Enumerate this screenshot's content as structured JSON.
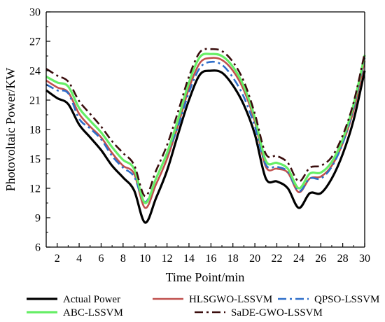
{
  "chart_data": {
    "type": "line",
    "xlabel": "Time Point/min",
    "ylabel": "Photovoltaic Power/KW",
    "xlim": [
      1,
      30
    ],
    "ylim": [
      6,
      30
    ],
    "x_ticks": [
      2,
      4,
      6,
      8,
      10,
      12,
      14,
      16,
      18,
      20,
      22,
      24,
      26,
      28,
      30
    ],
    "y_ticks": [
      6,
      9,
      12,
      15,
      18,
      21,
      24,
      27,
      30
    ],
    "grid": false,
    "legend_position": "bottom",
    "x": [
      1,
      2,
      3,
      4,
      5,
      6,
      7,
      8,
      9,
      10,
      11,
      12,
      13,
      14,
      15,
      16,
      17,
      18,
      19,
      20,
      21,
      22,
      23,
      24,
      25,
      26,
      27,
      28,
      29,
      30
    ],
    "series": [
      {
        "name": "Actual Power",
        "color": "#000000",
        "style": "solid",
        "values": [
          22.0,
          21.2,
          20.6,
          18.5,
          17.2,
          15.9,
          14.3,
          13.1,
          11.8,
          8.5,
          11.0,
          13.8,
          17.5,
          21.0,
          23.6,
          24.0,
          23.8,
          22.5,
          20.5,
          17.5,
          13.0,
          12.7,
          12.0,
          10.0,
          11.5,
          11.5,
          13.0,
          15.5,
          19.0,
          24.0
        ]
      },
      {
        "name": "HLSGWO-LSSVM",
        "color": "#c0504d",
        "style": "solid",
        "values": [
          23.0,
          22.3,
          21.8,
          19.6,
          18.3,
          17.2,
          15.6,
          14.3,
          13.5,
          10.0,
          12.4,
          15.0,
          18.4,
          22.2,
          24.8,
          25.3,
          25.1,
          24.0,
          22.0,
          18.8,
          14.2,
          14.0,
          13.6,
          11.6,
          13.0,
          13.2,
          14.3,
          16.6,
          20.0,
          25.0
        ]
      },
      {
        "name": "QPSO-LSSVM",
        "color": "#2e6ec9",
        "style": "dashdot",
        "values": [
          22.6,
          22.0,
          21.7,
          19.1,
          18.1,
          17.0,
          15.3,
          14.1,
          13.2,
          10.6,
          13.0,
          15.5,
          18.3,
          21.8,
          24.3,
          24.9,
          24.6,
          23.3,
          21.3,
          18.3,
          14.4,
          14.2,
          13.7,
          11.7,
          13.0,
          13.0,
          14.2,
          16.6,
          20.3,
          25.3
        ]
      },
      {
        "name": "ABC-LSSVM",
        "color": "#66ee66",
        "style": "solid",
        "values": [
          23.4,
          22.8,
          22.4,
          20.2,
          18.9,
          17.7,
          16.2,
          14.9,
          14.0,
          10.5,
          13.0,
          15.6,
          19.0,
          22.8,
          25.4,
          25.7,
          25.5,
          24.4,
          22.4,
          19.2,
          14.8,
          14.6,
          14.0,
          12.0,
          13.5,
          13.6,
          14.7,
          17.0,
          20.6,
          25.6
        ]
      },
      {
        "name": "SaDE-GWO-LSSVM",
        "color": "#3a0d0d",
        "style": "dashdot",
        "values": [
          24.2,
          23.5,
          22.9,
          20.9,
          19.6,
          18.3,
          16.8,
          15.6,
          14.4,
          11.2,
          13.8,
          16.4,
          19.8,
          23.4,
          25.9,
          26.2,
          26.0,
          24.9,
          22.9,
          19.6,
          15.5,
          15.3,
          14.6,
          12.7,
          14.1,
          14.3,
          15.2,
          17.4,
          20.8,
          25.8
        ]
      }
    ]
  }
}
